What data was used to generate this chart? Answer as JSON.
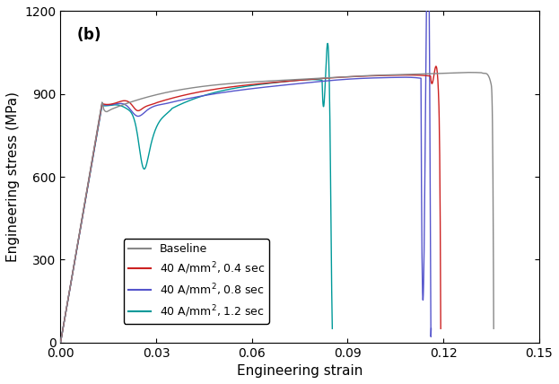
{
  "title": "(b)",
  "xlabel": "Engineering strain",
  "ylabel": "Engineering stress (MPa)",
  "xlim": [
    0.0,
    0.15
  ],
  "ylim": [
    0,
    1200
  ],
  "xticks": [
    0.0,
    0.03,
    0.06,
    0.09,
    0.12,
    0.15
  ],
  "yticks": [
    0,
    300,
    600,
    900,
    1200
  ],
  "legend_labels": [
    "Baseline",
    "40 A/mm$^2$, 0.4 sec",
    "40 A/mm$^2$, 0.8 sec",
    "40 A/mm$^2$, 1.2 sec"
  ],
  "colors": {
    "baseline": "#888888",
    "04sec": "#cc2222",
    "08sec": "#5555cc",
    "12sec": "#009999"
  },
  "background_color": "#ffffff",
  "linewidth": 1.0
}
